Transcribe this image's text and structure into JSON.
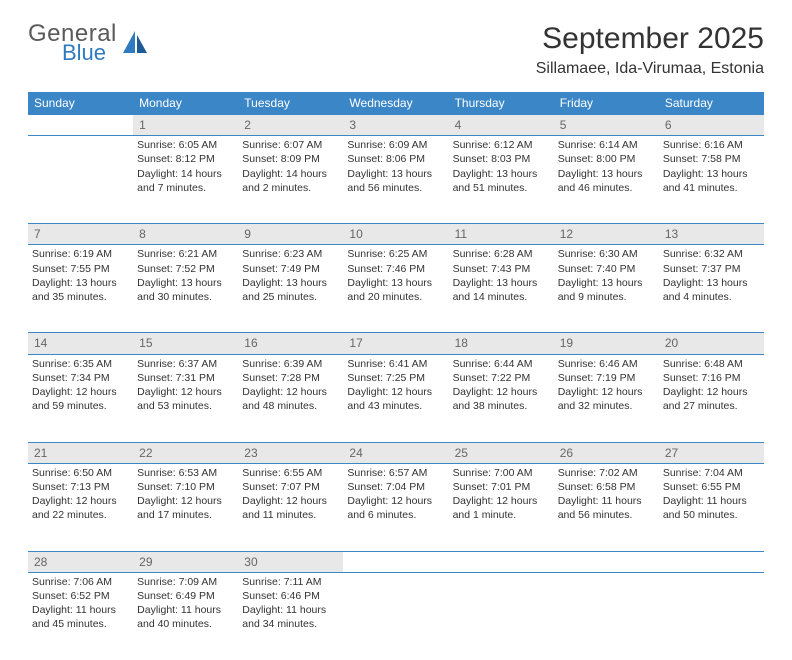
{
  "logo": {
    "general": "General",
    "blue": "Blue"
  },
  "title": "September 2025",
  "location": "Sillamaee, Ida-Virumaa, Estonia",
  "colors": {
    "header_bg": "#3b86c6",
    "header_fg": "#ffffff",
    "daynum_bg": "#e8e8e8",
    "daynum_fg": "#666666",
    "rule": "#3b86c6",
    "text": "#333333",
    "logo_gray": "#5a5a5a",
    "logo_blue": "#2f7ac0",
    "page_bg": "#ffffff"
  },
  "weekdays": [
    "Sunday",
    "Monday",
    "Tuesday",
    "Wednesday",
    "Thursday",
    "Friday",
    "Saturday"
  ],
  "weeks": [
    [
      null,
      {
        "n": "1",
        "sr": "6:05 AM",
        "ss": "8:12 PM",
        "dl": "14 hours and 7 minutes."
      },
      {
        "n": "2",
        "sr": "6:07 AM",
        "ss": "8:09 PM",
        "dl": "14 hours and 2 minutes."
      },
      {
        "n": "3",
        "sr": "6:09 AM",
        "ss": "8:06 PM",
        "dl": "13 hours and 56 minutes."
      },
      {
        "n": "4",
        "sr": "6:12 AM",
        "ss": "8:03 PM",
        "dl": "13 hours and 51 minutes."
      },
      {
        "n": "5",
        "sr": "6:14 AM",
        "ss": "8:00 PM",
        "dl": "13 hours and 46 minutes."
      },
      {
        "n": "6",
        "sr": "6:16 AM",
        "ss": "7:58 PM",
        "dl": "13 hours and 41 minutes."
      }
    ],
    [
      {
        "n": "7",
        "sr": "6:19 AM",
        "ss": "7:55 PM",
        "dl": "13 hours and 35 minutes."
      },
      {
        "n": "8",
        "sr": "6:21 AM",
        "ss": "7:52 PM",
        "dl": "13 hours and 30 minutes."
      },
      {
        "n": "9",
        "sr": "6:23 AM",
        "ss": "7:49 PM",
        "dl": "13 hours and 25 minutes."
      },
      {
        "n": "10",
        "sr": "6:25 AM",
        "ss": "7:46 PM",
        "dl": "13 hours and 20 minutes."
      },
      {
        "n": "11",
        "sr": "6:28 AM",
        "ss": "7:43 PM",
        "dl": "13 hours and 14 minutes."
      },
      {
        "n": "12",
        "sr": "6:30 AM",
        "ss": "7:40 PM",
        "dl": "13 hours and 9 minutes."
      },
      {
        "n": "13",
        "sr": "6:32 AM",
        "ss": "7:37 PM",
        "dl": "13 hours and 4 minutes."
      }
    ],
    [
      {
        "n": "14",
        "sr": "6:35 AM",
        "ss": "7:34 PM",
        "dl": "12 hours and 59 minutes."
      },
      {
        "n": "15",
        "sr": "6:37 AM",
        "ss": "7:31 PM",
        "dl": "12 hours and 53 minutes."
      },
      {
        "n": "16",
        "sr": "6:39 AM",
        "ss": "7:28 PM",
        "dl": "12 hours and 48 minutes."
      },
      {
        "n": "17",
        "sr": "6:41 AM",
        "ss": "7:25 PM",
        "dl": "12 hours and 43 minutes."
      },
      {
        "n": "18",
        "sr": "6:44 AM",
        "ss": "7:22 PM",
        "dl": "12 hours and 38 minutes."
      },
      {
        "n": "19",
        "sr": "6:46 AM",
        "ss": "7:19 PM",
        "dl": "12 hours and 32 minutes."
      },
      {
        "n": "20",
        "sr": "6:48 AM",
        "ss": "7:16 PM",
        "dl": "12 hours and 27 minutes."
      }
    ],
    [
      {
        "n": "21",
        "sr": "6:50 AM",
        "ss": "7:13 PM",
        "dl": "12 hours and 22 minutes."
      },
      {
        "n": "22",
        "sr": "6:53 AM",
        "ss": "7:10 PM",
        "dl": "12 hours and 17 minutes."
      },
      {
        "n": "23",
        "sr": "6:55 AM",
        "ss": "7:07 PM",
        "dl": "12 hours and 11 minutes."
      },
      {
        "n": "24",
        "sr": "6:57 AM",
        "ss": "7:04 PM",
        "dl": "12 hours and 6 minutes."
      },
      {
        "n": "25",
        "sr": "7:00 AM",
        "ss": "7:01 PM",
        "dl": "12 hours and 1 minute."
      },
      {
        "n": "26",
        "sr": "7:02 AM",
        "ss": "6:58 PM",
        "dl": "11 hours and 56 minutes."
      },
      {
        "n": "27",
        "sr": "7:04 AM",
        "ss": "6:55 PM",
        "dl": "11 hours and 50 minutes."
      }
    ],
    [
      {
        "n": "28",
        "sr": "7:06 AM",
        "ss": "6:52 PM",
        "dl": "11 hours and 45 minutes."
      },
      {
        "n": "29",
        "sr": "7:09 AM",
        "ss": "6:49 PM",
        "dl": "11 hours and 40 minutes."
      },
      {
        "n": "30",
        "sr": "7:11 AM",
        "ss": "6:46 PM",
        "dl": "11 hours and 34 minutes."
      },
      null,
      null,
      null,
      null
    ]
  ],
  "labels": {
    "sunrise": "Sunrise:",
    "sunset": "Sunset:",
    "daylight": "Daylight:"
  }
}
